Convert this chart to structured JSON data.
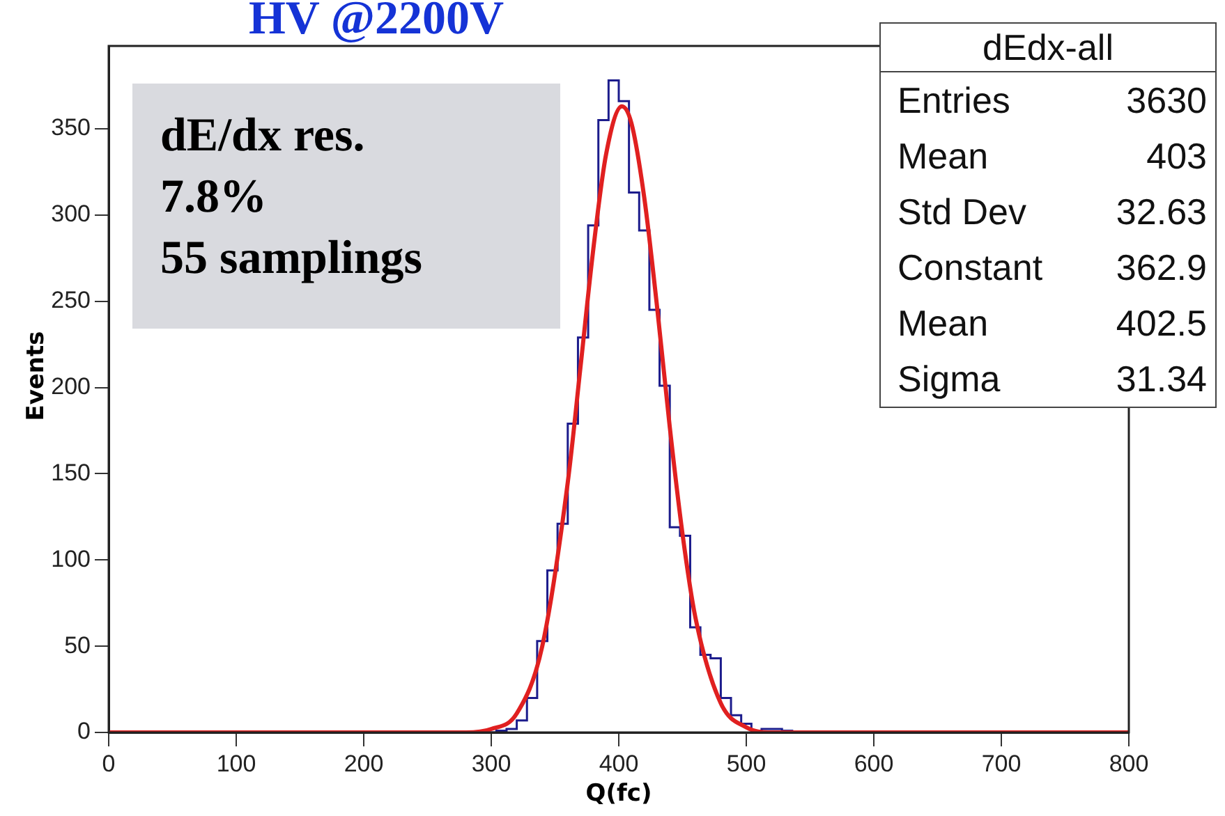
{
  "chart_data": {
    "type": "histogram",
    "title": "HV @2200V",
    "xlabel": "Q(fc)",
    "ylabel": "Events",
    "bins": [
      0,
      304,
      312,
      320,
      328,
      336,
      344,
      352,
      360,
      368,
      376,
      384,
      392,
      400,
      408,
      416,
      424,
      432,
      440,
      448,
      456,
      464,
      472,
      480,
      488,
      496,
      504,
      512,
      520,
      528,
      536,
      800
    ],
    "values": [
      0,
      1,
      2,
      7,
      20,
      53,
      94,
      121,
      179,
      229,
      294,
      355,
      378,
      366,
      313,
      291,
      245,
      201,
      119,
      114,
      61,
      45,
      43,
      20,
      10,
      5,
      1,
      2,
      2,
      1,
      0
    ],
    "color": "#1c1c8c",
    "series": [
      {
        "type": "line",
        "color": "#e02020",
        "x": [
          0,
          280,
          300,
          320,
          340,
          360,
          370,
          380,
          390,
          402.5,
          410,
          420,
          430,
          440,
          450,
          460,
          480,
          500,
          520,
          800
        ],
        "values": [
          0,
          0,
          2,
          11,
          50,
          145,
          212,
          280,
          335,
          363,
          353,
          310,
          247,
          177,
          115,
          67,
          17,
          3,
          0,
          0
        ]
      }
    ],
    "xlim": [
      0,
      800
    ],
    "xticks": [
      0,
      100,
      200,
      300,
      400,
      500,
      600,
      700,
      800
    ],
    "ylim": [
      0,
      398
    ],
    "yticks": [
      0,
      50,
      100,
      150,
      200,
      250,
      300,
      350
    ],
    "grid": false,
    "legend": false,
    "annotations": [
      "dE/dx res.",
      "7.8%",
      "55 samplings",
      "dEdx-all",
      "Entries 3630",
      "Mean 403",
      "Std Dev 32.63",
      "Constant 362.9",
      "Mean 402.5",
      "Sigma 31.34"
    ]
  }
}
